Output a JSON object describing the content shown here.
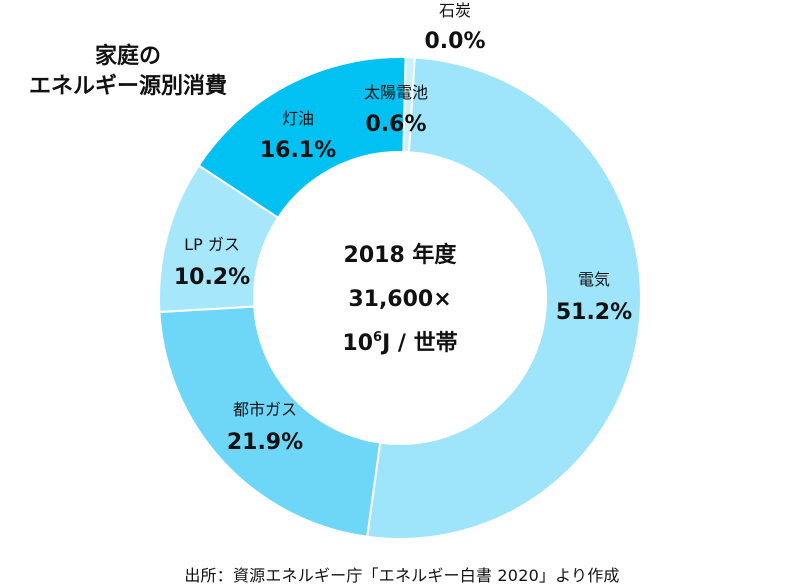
{
  "chart_data": {
    "type": "pie",
    "title_line1": "家庭の",
    "title_line2": "エネルギー源別消費",
    "center_line1": "2018 年度",
    "center_line2": "31,600×",
    "center_unit_base": "10",
    "center_unit_exp": "6",
    "center_unit_rest": "J / 世帯",
    "slices": [
      {
        "label": "電気",
        "value": 51.2,
        "display": "51.2%",
        "color": "#9ee4fb"
      },
      {
        "label": "都市ガス",
        "value": 21.9,
        "display": "21.9%",
        "color": "#6ed7f7"
      },
      {
        "label": "LP ガス",
        "value": 10.2,
        "display": "10.2%",
        "color": "#a6e7fb"
      },
      {
        "label": "灯油",
        "value": 16.1,
        "display": "16.1%",
        "color": "#00c1f1"
      },
      {
        "label": "太陽電池",
        "value": 0.6,
        "display": "0.6%",
        "color": "#c8f1fc"
      },
      {
        "label": "石炭",
        "value": 0.0,
        "display": "0.0%",
        "color": "#ffffff"
      }
    ],
    "source": "出所：資源エネルギー庁「エネルギー白書 2020」より作成"
  }
}
